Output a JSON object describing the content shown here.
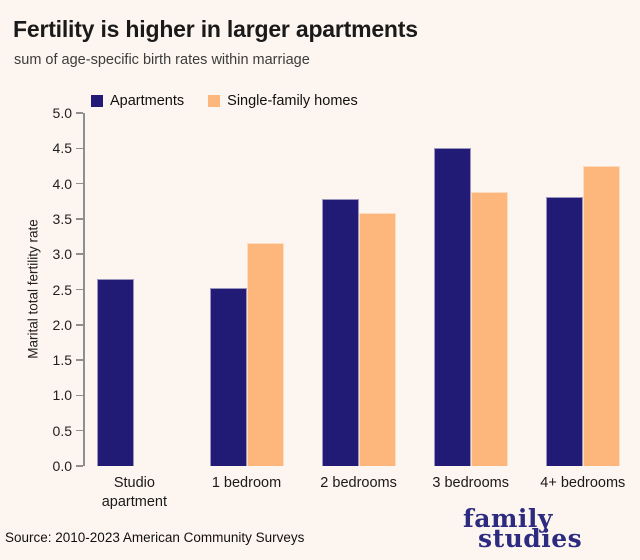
{
  "title": "Fertility is higher in larger apartments",
  "subtitle": "sum of age-specific birth rates within marriage",
  "source": "Source: 2010-2023 American Community Surveys",
  "logo": {
    "line1": "family",
    "line2": "studies"
  },
  "colors": {
    "background": "#fdf5ef",
    "apartments": "#221b75",
    "single_family_homes": "#fdb77c",
    "axis": "#8f8f8f",
    "logo": "#2d2b7f"
  },
  "chart_data": {
    "type": "bar",
    "title": "Fertility is higher in larger apartments",
    "subtitle": "sum of age-specific birth rates within marriage",
    "categories": [
      "Studio apartment",
      "1 bedroom",
      "2 bedrooms",
      "3 bedrooms",
      "4+ bedrooms"
    ],
    "series": [
      {
        "name": "Apartments",
        "color": "#221b75",
        "values": [
          2.65,
          2.52,
          3.78,
          4.5,
          3.81
        ]
      },
      {
        "name": "Single-family homes",
        "color": "#fdb77c",
        "values": [
          null,
          3.16,
          3.58,
          3.88,
          4.25
        ]
      }
    ],
    "xlabel": "",
    "ylabel": "Marital total fertility rate",
    "ylim": [
      0.0,
      5.0
    ],
    "ytick_step": 0.5,
    "yticks": [
      "0.0",
      "0.5",
      "1.0",
      "1.5",
      "2.0",
      "2.5",
      "3.0",
      "3.5",
      "4.0",
      "4.5",
      "5.0"
    ],
    "grid": false,
    "legend_position": "top-left"
  }
}
